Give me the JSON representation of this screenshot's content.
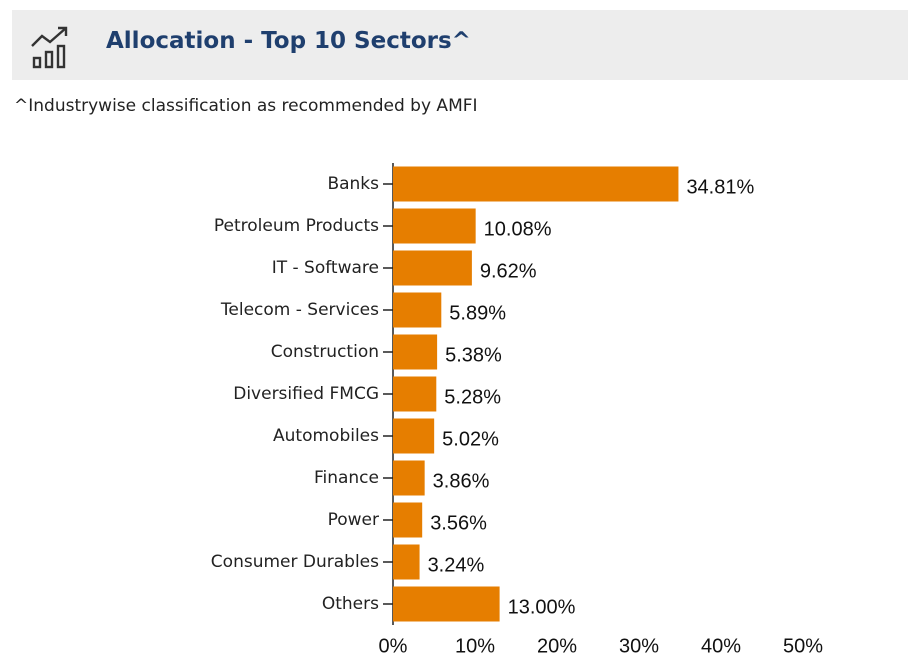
{
  "header": {
    "title": "Allocation - Top 10 Sectors^"
  },
  "chart_data": {
    "type": "bar",
    "orientation": "horizontal",
    "subtitle": "^Industrywise classification as recommended by AMFI",
    "categories": [
      "Banks",
      "Petroleum Products",
      "IT - Software",
      "Telecom - Services",
      "Construction",
      "Diversified FMCG",
      "Automobiles",
      "Finance",
      "Power",
      "Consumer Durables",
      "Others"
    ],
    "values": [
      34.81,
      10.08,
      9.62,
      5.89,
      5.38,
      5.28,
      5.02,
      3.86,
      3.56,
      3.24,
      13.0
    ],
    "value_labels": [
      "34.81%",
      "10.08%",
      "9.62%",
      "5.89%",
      "5.38%",
      "5.28%",
      "5.02%",
      "3.86%",
      "3.56%",
      "3.24%",
      "13.00%"
    ],
    "color": "#e67e00",
    "xlim": [
      0,
      50
    ],
    "xticks": [
      {
        "value": 0,
        "label": "0%"
      },
      {
        "value": 10,
        "label": "10%"
      },
      {
        "value": 20,
        "label": "20%"
      },
      {
        "value": 30,
        "label": "30%"
      },
      {
        "value": 40,
        "label": "40%"
      },
      {
        "value": 50,
        "label": "50%"
      }
    ],
    "grid": false
  }
}
